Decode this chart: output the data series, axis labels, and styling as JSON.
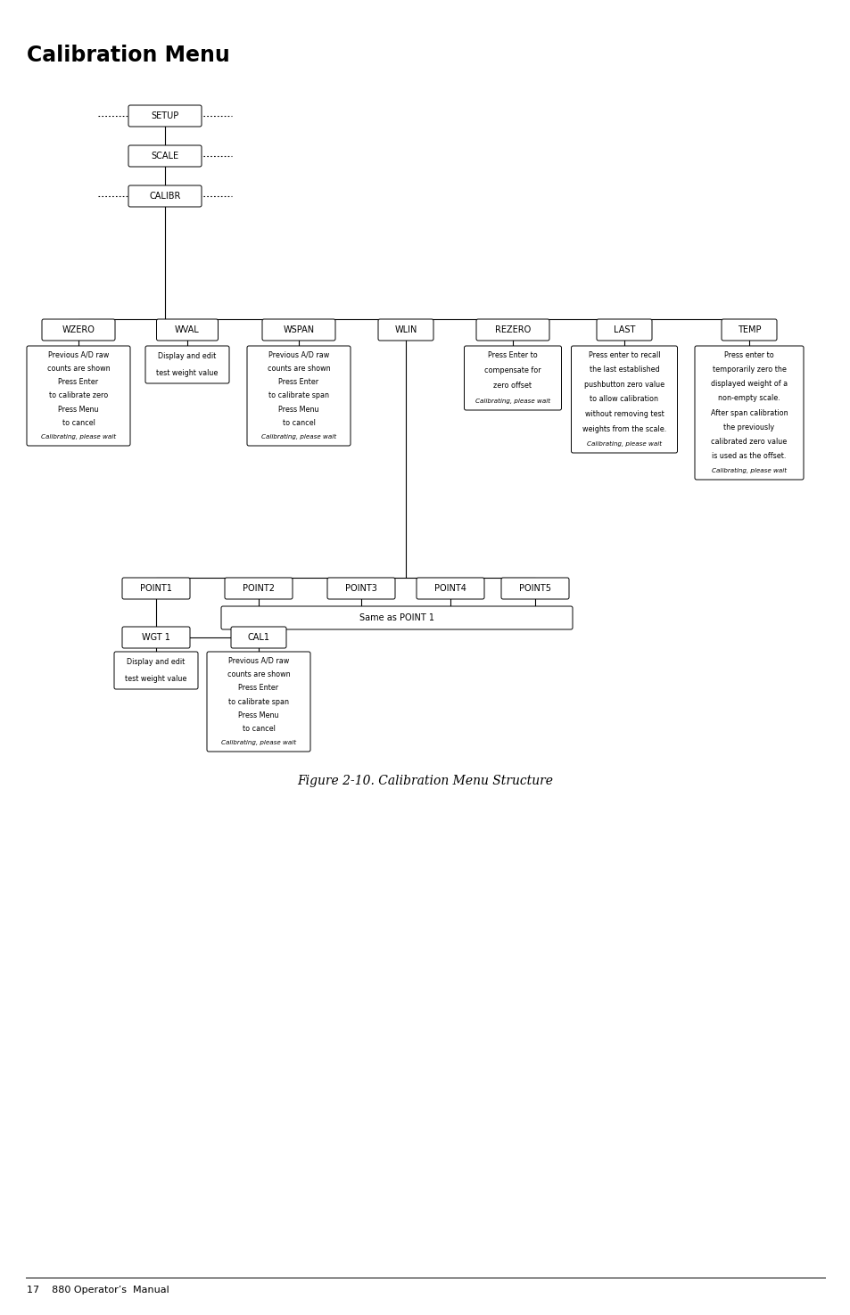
{
  "title": "Calibration Menu",
  "figure_caption": "Figure 2-10. Calibration Menu Structure",
  "footer": "17    880 Operator’s  Manual",
  "bg_color": "#ffffff",
  "line_color": "#000000"
}
